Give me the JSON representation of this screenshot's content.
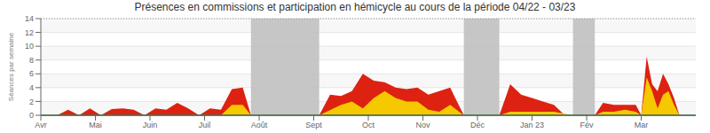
{
  "chart_data": {
    "type": "area",
    "title": "Présences en commissions et participation en hémicycle au cours de la période 04/22 - 03/23",
    "ylabel": "Séances par semaine",
    "xlim": [
      0,
      12
    ],
    "xticks": [
      {
        "value": 0.0,
        "label": "Avr"
      },
      {
        "value": 1.0,
        "label": "Mai"
      },
      {
        "value": 2.0,
        "label": "Juin"
      },
      {
        "value": 3.0,
        "label": "Juil"
      },
      {
        "value": 4.0,
        "label": "Août"
      },
      {
        "value": 5.0,
        "label": "Sept"
      },
      {
        "value": 6.0,
        "label": "Oct"
      },
      {
        "value": 7.0,
        "label": "Nov"
      },
      {
        "value": 8.0,
        "label": "Déc"
      },
      {
        "value": 9.0,
        "label": "Jan 23"
      },
      {
        "value": 10.0,
        "label": "Fév"
      },
      {
        "value": 11.0,
        "label": "Mar"
      }
    ],
    "ylim": [
      0,
      14
    ],
    "yticks": [
      0,
      2,
      4,
      6,
      8,
      10,
      12,
      14
    ],
    "grid": true,
    "series": [
      {
        "color": "#dd2211",
        "x": [
          0.0,
          0.3,
          0.5,
          0.7,
          0.9,
          1.1,
          1.3,
          1.5,
          1.7,
          1.9,
          2.1,
          2.3,
          2.5,
          2.7,
          2.9,
          3.1,
          3.3,
          3.5,
          3.7,
          3.85,
          5.1,
          5.3,
          5.5,
          5.7,
          5.9,
          6.1,
          6.3,
          6.5,
          6.7,
          6.9,
          7.1,
          7.3,
          7.5,
          7.75,
          8.4,
          8.6,
          8.8,
          9.0,
          9.2,
          9.4,
          9.6,
          9.75,
          10.15,
          10.3,
          10.5,
          10.7,
          10.9,
          11.0,
          11.1,
          11.2,
          11.3,
          11.4,
          11.5,
          11.6,
          11.7,
          11.8,
          11.9,
          12.0
        ],
        "values": [
          0.0,
          0.0,
          0.8,
          0.0,
          1.0,
          0.0,
          0.9,
          1.0,
          0.8,
          0.0,
          1.0,
          0.8,
          1.8,
          1.0,
          0.0,
          1.0,
          0.8,
          3.8,
          4.0,
          0.0,
          0.0,
          3.0,
          2.8,
          3.5,
          6.0,
          5.0,
          4.8,
          4.0,
          3.8,
          4.0,
          3.0,
          3.5,
          4.0,
          0.0,
          0.0,
          4.5,
          3.0,
          2.5,
          2.0,
          1.5,
          0.0,
          0.0,
          0.0,
          1.8,
          1.5,
          1.5,
          1.5,
          0.0,
          8.5,
          4.5,
          3.5,
          6.0,
          4.5,
          2.5,
          0.0,
          0.0,
          0.0,
          0.0
        ]
      },
      {
        "color": "#f5c800",
        "x": [
          0.0,
          2.5,
          2.7,
          2.9,
          3.1,
          3.3,
          3.5,
          3.7,
          3.85,
          5.1,
          5.5,
          5.7,
          5.9,
          6.1,
          6.3,
          6.5,
          6.7,
          6.9,
          7.1,
          7.3,
          7.5,
          7.75,
          8.4,
          8.6,
          9.4,
          9.75,
          10.15,
          10.3,
          10.5,
          10.7,
          10.9,
          11.0,
          11.1,
          11.2,
          11.3,
          11.4,
          11.5,
          11.6,
          11.7,
          11.8,
          11.9,
          12.0
        ],
        "values": [
          0.0,
          0.0,
          0.0,
          0.0,
          0.0,
          0.0,
          1.5,
          1.5,
          0.0,
          0.0,
          1.5,
          2.0,
          1.0,
          2.5,
          3.5,
          2.5,
          2.0,
          2.0,
          0.8,
          0.5,
          1.5,
          0.0,
          0.0,
          0.5,
          0.5,
          0.0,
          0.0,
          0.5,
          0.5,
          0.8,
          0.5,
          0.0,
          5.5,
          3.5,
          1.0,
          3.0,
          3.5,
          1.5,
          0.0,
          0.0,
          0.0,
          0.0
        ]
      }
    ],
    "bands": [
      {
        "start": 3.85,
        "end": 5.1,
        "color": "#c0c0c0"
      },
      {
        "start": 7.75,
        "end": 8.4,
        "color": "#c0c0c0"
      },
      {
        "start": 9.75,
        "end": 10.15,
        "color": "#c0c0c0"
      }
    ],
    "lines": [
      {
        "y": 14,
        "color": "#999999",
        "line_style": "dotted"
      },
      {
        "y": 0,
        "color": "#2d7a2d",
        "line_style": "solid"
      }
    ]
  }
}
